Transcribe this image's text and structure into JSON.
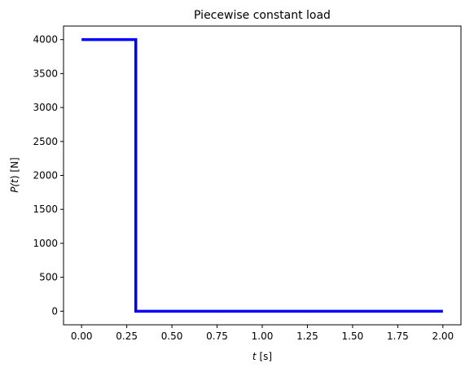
{
  "chart_data": {
    "type": "line",
    "title": "Piecewise constant load",
    "xlabel_var": "t",
    "xlabel_unit": " [s]",
    "ylabel_pre": "P(",
    "ylabel_var": "t",
    "ylabel_post": ") [N]",
    "xlim": [
      -0.1,
      2.1
    ],
    "ylim": [
      -200,
      4200
    ],
    "xticks": [
      0.0,
      0.25,
      0.5,
      0.75,
      1.0,
      1.25,
      1.5,
      1.75,
      2.0
    ],
    "xtick_labels": [
      "0.00",
      "0.25",
      "0.50",
      "0.75",
      "1.00",
      "1.25",
      "1.50",
      "1.75",
      "2.00"
    ],
    "yticks": [
      0,
      500,
      1000,
      1500,
      2000,
      2500,
      3000,
      3500,
      4000
    ],
    "ytick_labels": [
      "0",
      "500",
      "1000",
      "1500",
      "2000",
      "2500",
      "3000",
      "3500",
      "4000"
    ],
    "series": [
      {
        "color": "#0000ff",
        "x": [
          0.0,
          0.3,
          0.3,
          2.0
        ],
        "y": [
          4000,
          4000,
          0,
          0
        ]
      }
    ],
    "grid": false
  }
}
